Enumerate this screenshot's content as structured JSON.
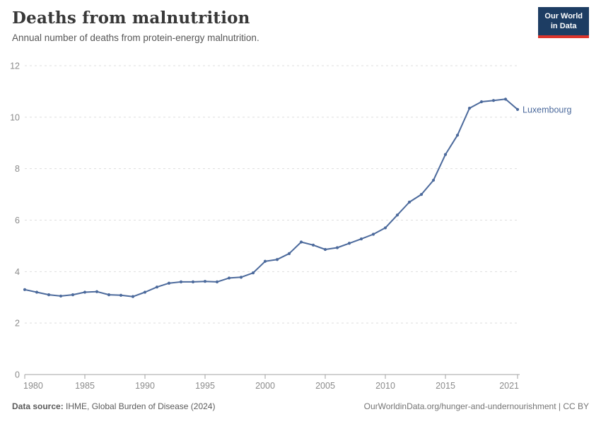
{
  "header": {
    "title": "Deaths from malnutrition",
    "subtitle": "Annual number of deaths from protein-energy malnutrition.",
    "logo": {
      "line1": "Our World",
      "line2": "in Data"
    }
  },
  "colors": {
    "series_blue": "#4C6A9C",
    "logo_navy": "#1d3d63",
    "logo_red": "#dc352c",
    "gridline": "#dedede",
    "axis": "#a3a3a3",
    "tick_label": "#8b8b8b"
  },
  "chart_data": {
    "type": "line",
    "title": "Deaths from malnutrition",
    "xlabel": "",
    "ylabel": "",
    "xlim": [
      1980,
      2021
    ],
    "ylim": [
      0,
      12
    ],
    "grid": "horizontal-dashed",
    "legend_position": "end-of-line-label",
    "x_ticks": [
      1980,
      1985,
      1990,
      1995,
      2000,
      2005,
      2010,
      2015,
      2021
    ],
    "y_ticks": [
      0,
      2,
      4,
      6,
      8,
      10,
      12
    ],
    "series": [
      {
        "name": "Luxembourg",
        "x": [
          1980,
          1981,
          1982,
          1983,
          1984,
          1985,
          1986,
          1987,
          1988,
          1989,
          1990,
          1991,
          1992,
          1993,
          1994,
          1995,
          1996,
          1997,
          1998,
          1999,
          2000,
          2001,
          2002,
          2003,
          2004,
          2005,
          2006,
          2007,
          2008,
          2009,
          2010,
          2011,
          2012,
          2013,
          2014,
          2015,
          2016,
          2017,
          2018,
          2019,
          2020,
          2021
        ],
        "values": [
          3.3,
          3.2,
          3.1,
          3.05,
          3.1,
          3.2,
          3.22,
          3.1,
          3.08,
          3.03,
          3.2,
          3.4,
          3.55,
          3.6,
          3.6,
          3.62,
          3.6,
          3.75,
          3.78,
          3.95,
          4.4,
          4.47,
          4.7,
          5.15,
          5.03,
          4.86,
          4.93,
          5.1,
          5.27,
          5.45,
          5.7,
          6.2,
          6.7,
          7.0,
          7.55,
          8.55,
          9.3,
          10.35,
          10.6,
          10.65,
          10.7,
          10.3
        ]
      }
    ]
  },
  "footer": {
    "source_label": "Data source:",
    "source_text": " IHME, Global Burden of Disease (2024)",
    "credit": "OurWorldinData.org/hunger-and-undernourishment | CC BY"
  }
}
